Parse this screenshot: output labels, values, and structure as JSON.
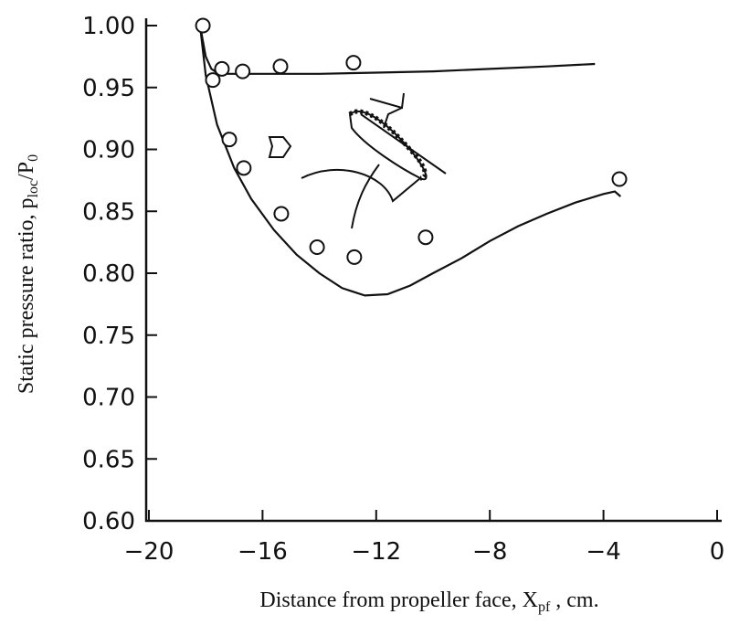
{
  "chart_data": {
    "type": "line",
    "y_label": [
      "Static pressure ratio, p",
      "loc",
      "/P",
      "0"
    ],
    "x_label": [
      "Distance from propeller face, X",
      "pf",
      " , cm."
    ],
    "xlim": [
      -20,
      0
    ],
    "ylim": [
      0.6,
      1.0
    ],
    "xticks": [
      {
        "value": -20,
        "label": "−20"
      },
      {
        "value": -16,
        "label": "−16"
      },
      {
        "value": -12,
        "label": "−12"
      },
      {
        "value": -8,
        "label": "−8"
      },
      {
        "value": -4,
        "label": "−4"
      },
      0
    ],
    "yticks": [
      {
        "value": 0.6,
        "label": "0.60"
      },
      {
        "value": 0.65,
        "label": "0.65"
      },
      {
        "value": 0.7,
        "label": "0.70"
      },
      {
        "value": 0.75,
        "label": "0.75"
      },
      {
        "value": 0.8,
        "label": "0.80"
      },
      {
        "value": 0.85,
        "label": "0.85"
      },
      {
        "value": 0.9,
        "label": "0.90"
      },
      {
        "value": 0.95,
        "label": "0.95"
      },
      {
        "value": 1.0,
        "label": "1.00"
      }
    ],
    "series": [
      {
        "style": "line",
        "color": "#111111",
        "x": [
          -18.2,
          -18.0,
          -17.8,
          -17.6,
          -17.2,
          -16,
          -14,
          -12,
          -10,
          -8,
          -6,
          -4.3
        ],
        "values": [
          1.0,
          0.975,
          0.965,
          0.962,
          0.961,
          0.961,
          0.961,
          0.962,
          0.963,
          0.965,
          0.967,
          0.969
        ]
      },
      {
        "style": "line",
        "color": "#111111",
        "x": [
          -18.2,
          -18.0,
          -17.6,
          -17.0,
          -16.4,
          -15.6,
          -14.8,
          -14,
          -13.2,
          -12.4,
          -11.6,
          -10.8,
          -10,
          -9,
          -8,
          -7,
          -6,
          -5,
          -4,
          -3.6,
          -3.4
        ],
        "values": [
          1.0,
          0.96,
          0.92,
          0.885,
          0.86,
          0.835,
          0.815,
          0.8,
          0.788,
          0.782,
          0.783,
          0.79,
          0.8,
          0.812,
          0.826,
          0.838,
          0.848,
          0.857,
          0.864,
          0.866,
          0.862
        ]
      },
      {
        "style": "marker",
        "color": "#111111",
        "x": [
          -18.1,
          -17.75,
          -17.43,
          -16.7,
          -15.37,
          -12.8,
          -17.17,
          -16.66,
          -15.34,
          -14.08,
          -12.77,
          -10.26,
          -3.44
        ],
        "values": [
          1.0,
          0.956,
          0.965,
          0.963,
          0.967,
          0.97,
          0.908,
          0.885,
          0.848,
          0.821,
          0.813,
          0.829,
          0.876
        ]
      }
    ]
  }
}
